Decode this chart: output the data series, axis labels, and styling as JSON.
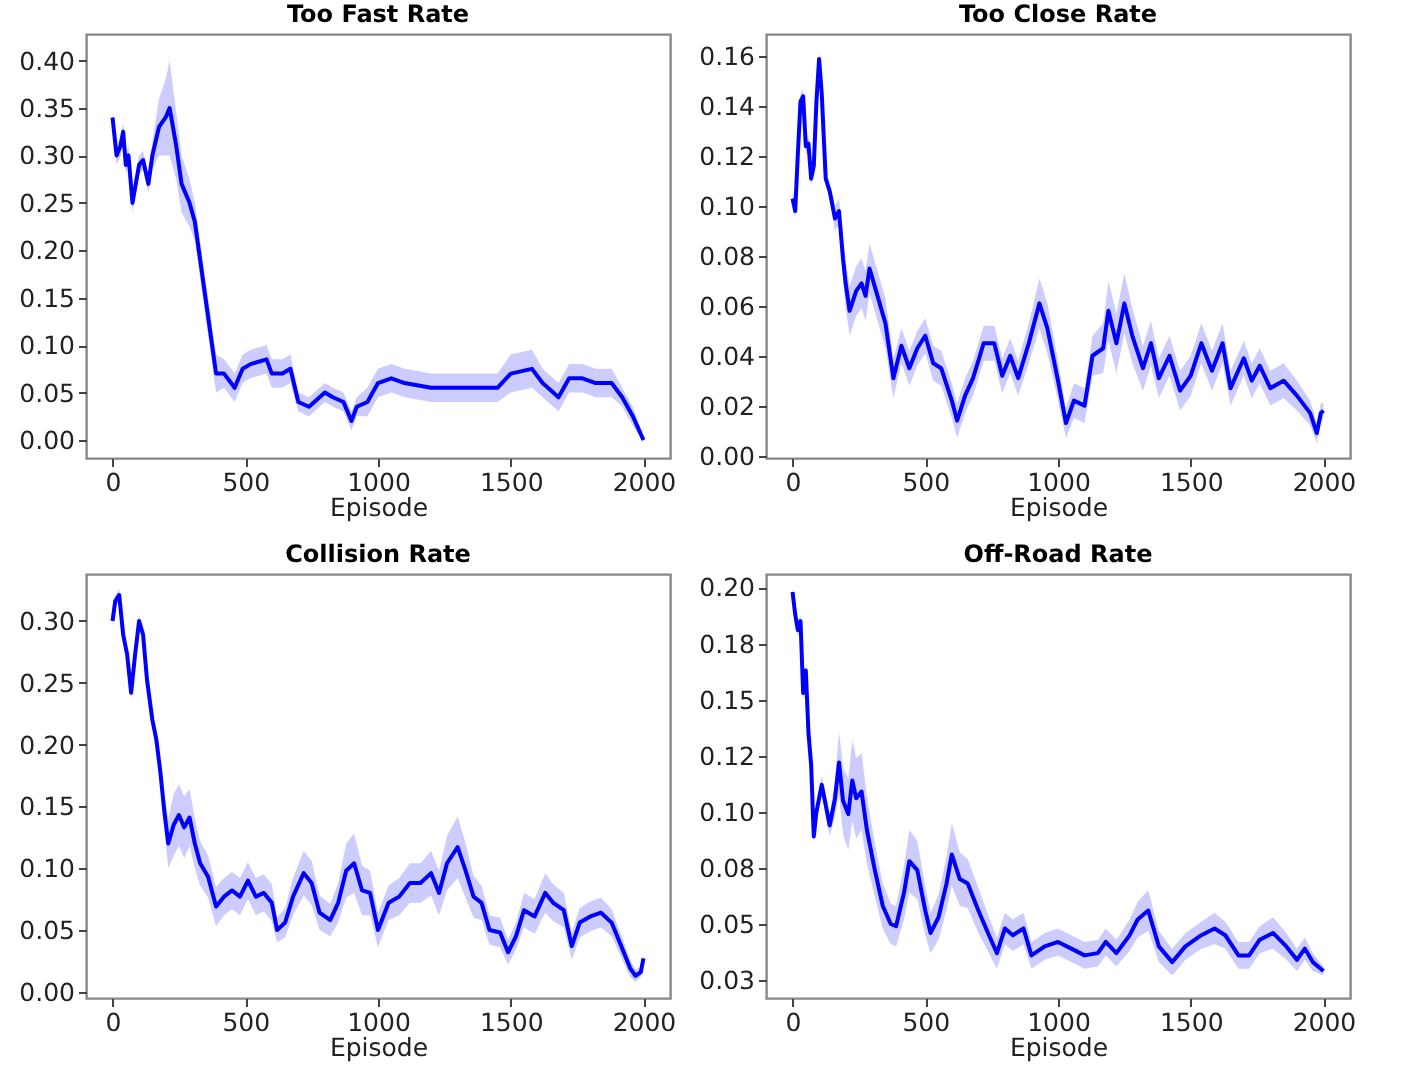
{
  "chart_data": [
    {
      "type": "line",
      "title": "Too Fast Rate",
      "xlabel": "Episode",
      "xlim": [
        -100,
        2100
      ],
      "xticks": [
        0,
        500,
        1000,
        1500,
        2000
      ],
      "ylim": [
        -0.019,
        0.428
      ],
      "yticks": [
        {
          "value": 0,
          "label": "0.00"
        },
        {
          "value": 0.05,
          "label": "0.05"
        },
        {
          "value": 0.1,
          "label": "0.10"
        },
        {
          "value": 0.15,
          "label": "0.15"
        },
        {
          "value": 0.2,
          "label": "0.20"
        },
        {
          "value": 0.25,
          "label": "0.25"
        },
        {
          "value": 0.3,
          "label": "0.30"
        },
        {
          "value": 0.35,
          "label": "0.35"
        },
        {
          "value": 0.4,
          "label": "0.40"
        }
      ],
      "series": [
        {
          "color": "#0000ff",
          "x": [
            0,
            15,
            30,
            40,
            50,
            60,
            75,
            100,
            115,
            135,
            150,
            175,
            200,
            215,
            240,
            260,
            290,
            310,
            330,
            350,
            375,
            390,
            420,
            460,
            490,
            520,
            580,
            600,
            640,
            670,
            700,
            740,
            800,
            830,
            870,
            900,
            920,
            960,
            1000,
            1050,
            1100,
            1200,
            1300,
            1400,
            1450,
            1500,
            1580,
            1620,
            1680,
            1720,
            1770,
            1820,
            1880,
            1920,
            1960,
            2000
          ],
          "values": [
            0.34,
            0.3,
            0.31,
            0.325,
            0.29,
            0.3,
            0.25,
            0.29,
            0.295,
            0.27,
            0.3,
            0.33,
            0.34,
            0.35,
            0.31,
            0.27,
            0.25,
            0.23,
            0.19,
            0.15,
            0.1,
            0.07,
            0.07,
            0.055,
            0.075,
            0.08,
            0.085,
            0.07,
            0.07,
            0.075,
            0.04,
            0.035,
            0.05,
            0.045,
            0.04,
            0.02,
            0.035,
            0.04,
            0.06,
            0.065,
            0.06,
            0.055,
            0.055,
            0.055,
            0.055,
            0.07,
            0.075,
            0.06,
            0.045,
            0.065,
            0.065,
            0.06,
            0.06,
            0.045,
            0.025,
            0.0
          ],
          "lower": [
            0.335,
            0.29,
            0.3,
            0.315,
            0.28,
            0.29,
            0.24,
            0.28,
            0.285,
            0.26,
            0.285,
            0.3,
            0.3,
            0.3,
            0.275,
            0.24,
            0.225,
            0.21,
            0.17,
            0.13,
            0.08,
            0.05,
            0.055,
            0.04,
            0.06,
            0.065,
            0.07,
            0.055,
            0.055,
            0.06,
            0.03,
            0.025,
            0.04,
            0.035,
            0.03,
            0.01,
            0.025,
            0.025,
            0.045,
            0.05,
            0.045,
            0.04,
            0.04,
            0.04,
            0.04,
            0.05,
            0.055,
            0.045,
            0.03,
            0.05,
            0.05,
            0.045,
            0.045,
            0.035,
            0.015,
            -0.003
          ],
          "upper": [
            0.345,
            0.31,
            0.32,
            0.335,
            0.3,
            0.31,
            0.26,
            0.3,
            0.305,
            0.28,
            0.315,
            0.36,
            0.38,
            0.4,
            0.345,
            0.3,
            0.275,
            0.25,
            0.21,
            0.17,
            0.12,
            0.09,
            0.085,
            0.07,
            0.09,
            0.095,
            0.1,
            0.085,
            0.085,
            0.09,
            0.05,
            0.045,
            0.06,
            0.055,
            0.05,
            0.03,
            0.045,
            0.055,
            0.075,
            0.08,
            0.075,
            0.07,
            0.07,
            0.07,
            0.07,
            0.09,
            0.095,
            0.075,
            0.06,
            0.08,
            0.08,
            0.075,
            0.075,
            0.055,
            0.035,
            0.005
          ]
        }
      ]
    },
    {
      "type": "line",
      "title": "Too Close Rate",
      "xlabel": "Episode",
      "xlim": [
        -100,
        2100
      ],
      "xticks": [
        0,
        500,
        1000,
        1500,
        2000
      ],
      "ylim": [
        -0.001,
        0.169
      ],
      "yticks": [
        {
          "value": 0,
          "label": "0.00"
        },
        {
          "value": 0.02,
          "label": "0.02"
        },
        {
          "value": 0.04,
          "label": "0.04"
        },
        {
          "value": 0.06,
          "label": "0.06"
        },
        {
          "value": 0.08,
          "label": "0.08"
        },
        {
          "value": 0.1,
          "label": "0.10"
        },
        {
          "value": 0.12,
          "label": "0.12"
        },
        {
          "value": 0.14,
          "label": "0.14"
        },
        {
          "value": 0.16,
          "label": "0.16"
        }
      ],
      "series": [
        {
          "color": "#0000ff",
          "x": [
            0,
            10,
            20,
            30,
            40,
            50,
            60,
            70,
            80,
            90,
            100,
            110,
            125,
            140,
            160,
            175,
            190,
            200,
            215,
            240,
            260,
            275,
            290,
            320,
            350,
            380,
            410,
            440,
            470,
            500,
            530,
            560,
            600,
            620,
            650,
            680,
            720,
            760,
            790,
            820,
            850,
            890,
            930,
            960,
            1000,
            1030,
            1060,
            1100,
            1130,
            1170,
            1190,
            1220,
            1250,
            1280,
            1320,
            1350,
            1380,
            1420,
            1460,
            1500,
            1540,
            1580,
            1620,
            1650,
            1700,
            1730,
            1760,
            1800,
            1850,
            1900,
            1950,
            1975,
            1990,
            2000
          ],
          "values": [
            0.103,
            0.098,
            0.121,
            0.142,
            0.144,
            0.124,
            0.125,
            0.111,
            0.116,
            0.142,
            0.159,
            0.145,
            0.111,
            0.106,
            0.095,
            0.098,
            0.079,
            0.069,
            0.058,
            0.066,
            0.069,
            0.064,
            0.075,
            0.064,
            0.053,
            0.031,
            0.044,
            0.035,
            0.043,
            0.048,
            0.037,
            0.035,
            0.022,
            0.014,
            0.024,
            0.031,
            0.045,
            0.045,
            0.032,
            0.04,
            0.031,
            0.045,
            0.061,
            0.051,
            0.03,
            0.013,
            0.022,
            0.02,
            0.04,
            0.043,
            0.058,
            0.045,
            0.061,
            0.048,
            0.035,
            0.045,
            0.031,
            0.04,
            0.026,
            0.032,
            0.045,
            0.034,
            0.045,
            0.027,
            0.039,
            0.03,
            0.036,
            0.027,
            0.03,
            0.024,
            0.017,
            0.009,
            0.017,
            0.018
          ],
          "lower": [
            0.1,
            0.095,
            0.118,
            0.139,
            0.141,
            0.121,
            0.122,
            0.108,
            0.113,
            0.139,
            0.156,
            0.142,
            0.108,
            0.103,
            0.09,
            0.093,
            0.071,
            0.059,
            0.048,
            0.056,
            0.059,
            0.054,
            0.065,
            0.054,
            0.043,
            0.023,
            0.037,
            0.028,
            0.036,
            0.041,
            0.03,
            0.028,
            0.015,
            0.007,
            0.017,
            0.024,
            0.038,
            0.038,
            0.025,
            0.033,
            0.024,
            0.037,
            0.051,
            0.041,
            0.022,
            0.007,
            0.015,
            0.013,
            0.032,
            0.033,
            0.046,
            0.033,
            0.049,
            0.037,
            0.026,
            0.036,
            0.023,
            0.032,
            0.018,
            0.024,
            0.037,
            0.026,
            0.037,
            0.02,
            0.032,
            0.023,
            0.029,
            0.02,
            0.023,
            0.018,
            0.012,
            0.005,
            0.013,
            0.015
          ],
          "upper": [
            0.106,
            0.101,
            0.124,
            0.145,
            0.147,
            0.127,
            0.128,
            0.114,
            0.119,
            0.145,
            0.162,
            0.148,
            0.114,
            0.109,
            0.1,
            0.103,
            0.087,
            0.079,
            0.068,
            0.076,
            0.079,
            0.074,
            0.085,
            0.074,
            0.063,
            0.039,
            0.051,
            0.042,
            0.05,
            0.055,
            0.044,
            0.042,
            0.029,
            0.021,
            0.031,
            0.038,
            0.052,
            0.052,
            0.039,
            0.047,
            0.038,
            0.053,
            0.071,
            0.061,
            0.038,
            0.019,
            0.029,
            0.027,
            0.048,
            0.053,
            0.07,
            0.057,
            0.073,
            0.059,
            0.044,
            0.054,
            0.039,
            0.048,
            0.034,
            0.04,
            0.053,
            0.042,
            0.053,
            0.034,
            0.046,
            0.037,
            0.043,
            0.034,
            0.037,
            0.03,
            0.022,
            0.013,
            0.021,
            0.021
          ]
        }
      ]
    },
    {
      "type": "line",
      "title": "Collision Rate",
      "xlabel": "Episode",
      "xlim": [
        -100,
        2100
      ],
      "xticks": [
        0,
        500,
        1000,
        1500,
        2000
      ],
      "ylim": [
        -0.005,
        0.338
      ],
      "yticks": [
        {
          "value": 0,
          "label": "0.00"
        },
        {
          "value": 0.05,
          "label": "0.05"
        },
        {
          "value": 0.1,
          "label": "0.10"
        },
        {
          "value": 0.15,
          "label": "0.15"
        },
        {
          "value": 0.2,
          "label": "0.20"
        },
        {
          "value": 0.25,
          "label": "0.25"
        },
        {
          "value": 0.3,
          "label": "0.30"
        }
      ],
      "series": [
        {
          "color": "#0000ff",
          "x": [
            0,
            10,
            25,
            40,
            55,
            70,
            85,
            100,
            115,
            130,
            150,
            165,
            180,
            195,
            210,
            230,
            250,
            270,
            290,
            310,
            330,
            360,
            390,
            420,
            450,
            480,
            510,
            540,
            570,
            600,
            620,
            650,
            680,
            720,
            750,
            780,
            820,
            850,
            880,
            910,
            940,
            970,
            1000,
            1040,
            1080,
            1120,
            1160,
            1200,
            1230,
            1260,
            1300,
            1330,
            1360,
            1390,
            1420,
            1460,
            1490,
            1520,
            1550,
            1590,
            1630,
            1660,
            1700,
            1730,
            1760,
            1800,
            1840,
            1880,
            1920,
            1950,
            1970,
            1990,
            2000
          ],
          "values": [
            0.3,
            0.316,
            0.321,
            0.289,
            0.273,
            0.242,
            0.273,
            0.3,
            0.289,
            0.252,
            0.22,
            0.204,
            0.178,
            0.146,
            0.12,
            0.135,
            0.143,
            0.133,
            0.141,
            0.12,
            0.104,
            0.093,
            0.069,
            0.077,
            0.082,
            0.077,
            0.09,
            0.077,
            0.08,
            0.072,
            0.05,
            0.056,
            0.077,
            0.096,
            0.088,
            0.064,
            0.058,
            0.072,
            0.098,
            0.104,
            0.082,
            0.08,
            0.05,
            0.072,
            0.077,
            0.088,
            0.088,
            0.096,
            0.08,
            0.104,
            0.117,
            0.098,
            0.077,
            0.072,
            0.05,
            0.048,
            0.032,
            0.045,
            0.066,
            0.061,
            0.08,
            0.072,
            0.066,
            0.037,
            0.056,
            0.061,
            0.064,
            0.056,
            0.035,
            0.019,
            0.013,
            0.016,
            0.027
          ],
          "lower": [
            0.295,
            0.311,
            0.316,
            0.284,
            0.268,
            0.237,
            0.268,
            0.295,
            0.284,
            0.247,
            0.214,
            0.197,
            0.168,
            0.131,
            0.1,
            0.11,
            0.118,
            0.108,
            0.118,
            0.1,
            0.086,
            0.076,
            0.053,
            0.062,
            0.067,
            0.062,
            0.075,
            0.062,
            0.065,
            0.057,
            0.04,
            0.044,
            0.062,
            0.078,
            0.07,
            0.05,
            0.045,
            0.056,
            0.076,
            0.08,
            0.062,
            0.062,
            0.036,
            0.058,
            0.062,
            0.072,
            0.072,
            0.078,
            0.062,
            0.082,
            0.092,
            0.076,
            0.06,
            0.058,
            0.038,
            0.036,
            0.022,
            0.034,
            0.052,
            0.047,
            0.064,
            0.057,
            0.052,
            0.026,
            0.044,
            0.049,
            0.052,
            0.045,
            0.026,
            0.012,
            0.008,
            0.012,
            0.024
          ],
          "upper": [
            0.305,
            0.321,
            0.326,
            0.294,
            0.278,
            0.247,
            0.278,
            0.305,
            0.294,
            0.257,
            0.226,
            0.211,
            0.188,
            0.161,
            0.14,
            0.16,
            0.168,
            0.158,
            0.164,
            0.14,
            0.122,
            0.11,
            0.085,
            0.092,
            0.097,
            0.092,
            0.105,
            0.092,
            0.095,
            0.087,
            0.06,
            0.068,
            0.092,
            0.114,
            0.106,
            0.078,
            0.071,
            0.088,
            0.12,
            0.128,
            0.102,
            0.098,
            0.064,
            0.086,
            0.092,
            0.104,
            0.104,
            0.114,
            0.098,
            0.126,
            0.142,
            0.12,
            0.094,
            0.086,
            0.062,
            0.06,
            0.042,
            0.056,
            0.08,
            0.075,
            0.096,
            0.087,
            0.08,
            0.048,
            0.068,
            0.073,
            0.076,
            0.067,
            0.044,
            0.026,
            0.018,
            0.02,
            0.03
          ]
        }
      ]
    },
    {
      "type": "line",
      "title": "Off-Road Rate",
      "xlabel": "Episode",
      "xlim": [
        -100,
        2100
      ],
      "xticks": [
        0,
        500,
        1000,
        1500,
        2000
      ],
      "ylim": [
        0.017,
        0.206
      ],
      "yticks": [
        {
          "value": 0.025,
          "label": "0.03"
        },
        {
          "value": 0.05,
          "label": "0.05"
        },
        {
          "value": 0.075,
          "label": "0.08"
        },
        {
          "value": 0.1,
          "label": "0.10"
        },
        {
          "value": 0.125,
          "label": "0.12"
        },
        {
          "value": 0.15,
          "label": "0.15"
        },
        {
          "value": 0.175,
          "label": "0.18"
        },
        {
          "value": 0.2,
          "label": "0.20"
        }
      ],
      "series": [
        {
          "color": "#0000ff",
          "x": [
            0,
            10,
            20,
            30,
            40,
            50,
            60,
            70,
            80,
            90,
            100,
            110,
            125,
            140,
            160,
            175,
            190,
            210,
            225,
            240,
            260,
            280,
            310,
            340,
            370,
            390,
            420,
            440,
            470,
            500,
            520,
            550,
            580,
            600,
            630,
            660,
            700,
            740,
            770,
            800,
            830,
            870,
            900,
            950,
            1000,
            1050,
            1100,
            1150,
            1180,
            1220,
            1270,
            1300,
            1340,
            1380,
            1430,
            1480,
            1540,
            1590,
            1630,
            1680,
            1720,
            1760,
            1810,
            1860,
            1900,
            1930,
            1960,
            2000
          ],
          "values": [
            0.198,
            0.188,
            0.181,
            0.185,
            0.153,
            0.163,
            0.135,
            0.121,
            0.089,
            0.1,
            0.106,
            0.112,
            0.103,
            0.094,
            0.106,
            0.122,
            0.105,
            0.099,
            0.114,
            0.106,
            0.109,
            0.092,
            0.074,
            0.058,
            0.05,
            0.049,
            0.064,
            0.078,
            0.074,
            0.056,
            0.046,
            0.053,
            0.068,
            0.081,
            0.07,
            0.068,
            0.056,
            0.045,
            0.037,
            0.048,
            0.045,
            0.048,
            0.036,
            0.04,
            0.042,
            0.039,
            0.036,
            0.037,
            0.042,
            0.037,
            0.045,
            0.052,
            0.056,
            0.04,
            0.033,
            0.04,
            0.045,
            0.048,
            0.045,
            0.036,
            0.036,
            0.043,
            0.046,
            0.04,
            0.034,
            0.039,
            0.033,
            0.029
          ],
          "lower": [
            0.196,
            0.185,
            0.178,
            0.182,
            0.15,
            0.16,
            0.132,
            0.118,
            0.086,
            0.096,
            0.102,
            0.108,
            0.098,
            0.089,
            0.098,
            0.108,
            0.09,
            0.083,
            0.096,
            0.088,
            0.092,
            0.077,
            0.062,
            0.048,
            0.041,
            0.04,
            0.052,
            0.064,
            0.061,
            0.045,
            0.037,
            0.043,
            0.056,
            0.067,
            0.058,
            0.057,
            0.046,
            0.037,
            0.03,
            0.041,
            0.038,
            0.041,
            0.03,
            0.034,
            0.036,
            0.033,
            0.03,
            0.031,
            0.036,
            0.031,
            0.038,
            0.044,
            0.047,
            0.033,
            0.027,
            0.034,
            0.039,
            0.041,
            0.039,
            0.03,
            0.03,
            0.037,
            0.039,
            0.034,
            0.029,
            0.034,
            0.029,
            0.027
          ],
          "upper": [
            0.2,
            0.191,
            0.184,
            0.188,
            0.156,
            0.166,
            0.138,
            0.124,
            0.092,
            0.104,
            0.11,
            0.116,
            0.108,
            0.099,
            0.114,
            0.136,
            0.12,
            0.115,
            0.132,
            0.124,
            0.126,
            0.107,
            0.086,
            0.068,
            0.059,
            0.058,
            0.076,
            0.092,
            0.087,
            0.067,
            0.055,
            0.063,
            0.08,
            0.095,
            0.082,
            0.079,
            0.066,
            0.053,
            0.044,
            0.055,
            0.052,
            0.055,
            0.042,
            0.046,
            0.048,
            0.045,
            0.042,
            0.043,
            0.048,
            0.043,
            0.052,
            0.06,
            0.065,
            0.047,
            0.039,
            0.046,
            0.051,
            0.055,
            0.051,
            0.042,
            0.042,
            0.049,
            0.053,
            0.046,
            0.039,
            0.044,
            0.037,
            0.031
          ]
        }
      ]
    }
  ]
}
